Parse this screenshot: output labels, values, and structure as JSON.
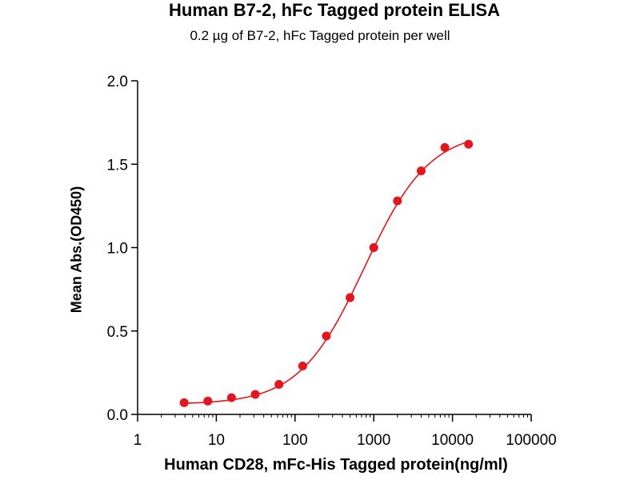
{
  "chart_data": {
    "type": "scatter",
    "title": "Human B7-2, hFc Tagged protein ELISA",
    "subtitle": "0.2 µg of B7-2, hFc Tagged protein per well",
    "xlabel": "Human CD28, mFc-His Tagged protein(ng/ml)",
    "ylabel": "Mean Abs.(OD450)",
    "x_scale": "log",
    "xlim": [
      1,
      100000
    ],
    "ylim": [
      0.0,
      2.0
    ],
    "x_ticks": [
      1,
      10,
      100,
      1000,
      10000,
      100000
    ],
    "x_tick_labels": [
      "1",
      "10",
      "100",
      "1000",
      "10000",
      "100000"
    ],
    "y_ticks": [
      0.0,
      0.5,
      1.0,
      1.5,
      2.0
    ],
    "y_tick_labels": [
      "0.0",
      "0.5",
      "1.0",
      "1.5",
      "2.0"
    ],
    "grid": false,
    "color": "#e8141b",
    "series": [
      {
        "x": [
          3.9,
          7.8,
          15.6,
          31.25,
          62.5,
          125,
          250,
          500,
          1000,
          2000,
          4000,
          8000,
          16000
        ],
        "values": [
          0.07,
          0.08,
          0.1,
          0.12,
          0.18,
          0.29,
          0.47,
          0.7,
          1.0,
          1.28,
          1.46,
          1.6,
          1.62
        ]
      }
    ],
    "fit_curve": {
      "type": "4PL",
      "bottom": 0.06,
      "top": 1.7,
      "ec50": 760,
      "hill": 1.05
    }
  }
}
